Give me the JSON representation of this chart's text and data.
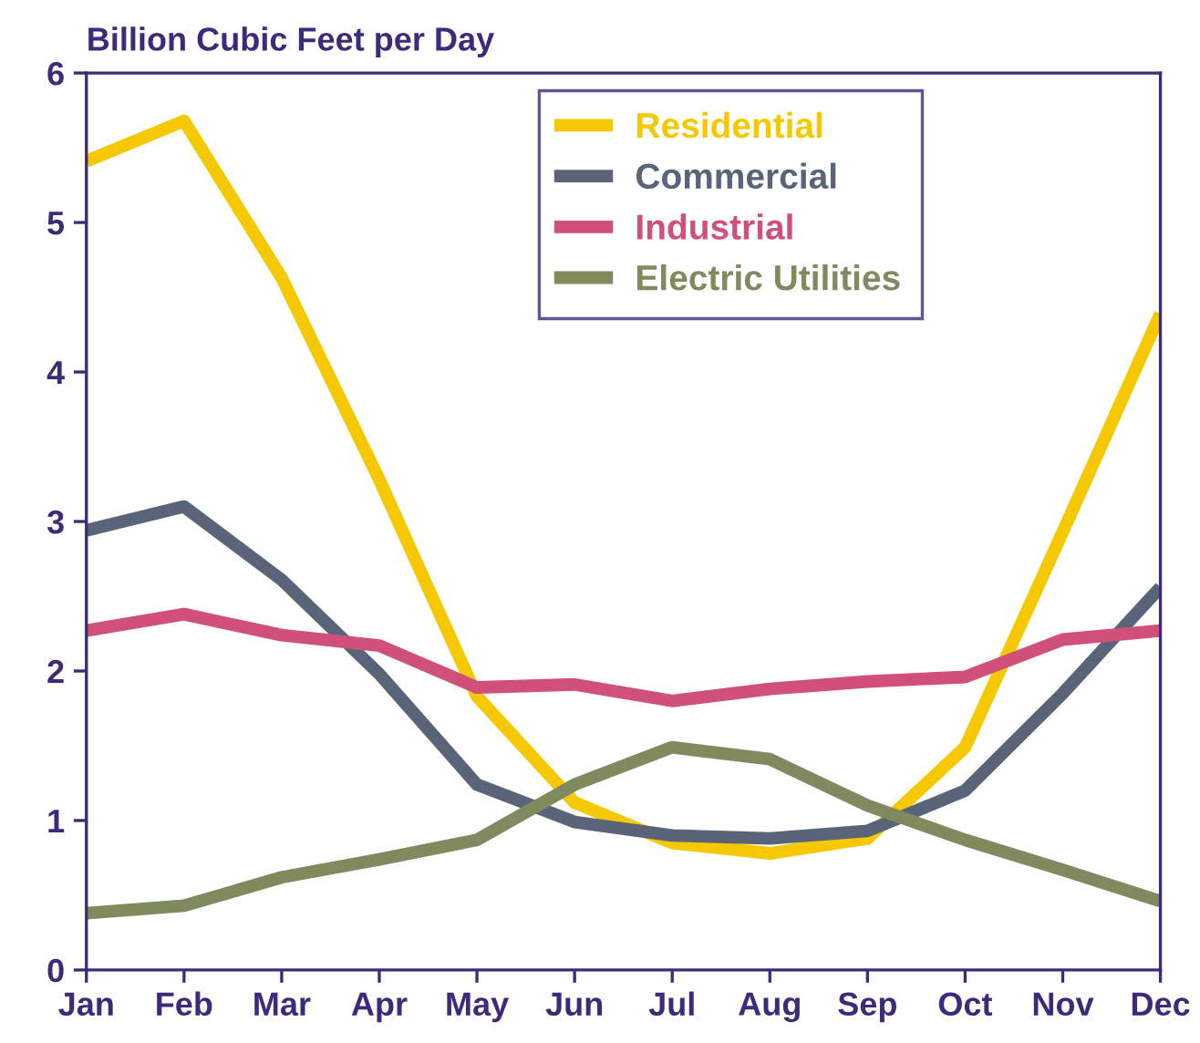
{
  "chart_data": {
    "type": "line",
    "ylabel": "Billion Cubic Feet per Day",
    "categories": [
      "Jan",
      "Feb",
      "Mar",
      "Apr",
      "May",
      "Jun",
      "Jul",
      "Aug",
      "Sep",
      "Oct",
      "Nov",
      "Dec"
    ],
    "series": [
      {
        "name": "Residential",
        "color": "#f5c800",
        "values": [
          5.41,
          5.68,
          4.63,
          3.28,
          1.83,
          1.12,
          0.85,
          0.78,
          0.88,
          1.49,
          2.93,
          4.39
        ]
      },
      {
        "name": "Commercial",
        "color": "#5a6478",
        "values": [
          2.94,
          3.1,
          2.61,
          1.98,
          1.24,
          0.99,
          0.9,
          0.88,
          0.93,
          1.2,
          1.85,
          2.56
        ]
      },
      {
        "name": "Industrial",
        "color": "#d0507a",
        "values": [
          2.27,
          2.38,
          2.24,
          2.17,
          1.89,
          1.91,
          1.8,
          1.88,
          1.93,
          1.96,
          2.21,
          2.27
        ]
      },
      {
        "name": "Electric Utilities",
        "color": "#7f8a5e",
        "values": [
          0.38,
          0.43,
          0.62,
          0.74,
          0.87,
          1.24,
          1.49,
          1.41,
          1.1,
          0.87,
          0.67,
          0.46
        ]
      }
    ],
    "ylim": [
      0,
      6
    ],
    "yticks": [
      0,
      1,
      2,
      3,
      4,
      5,
      6
    ],
    "grid": false,
    "legend": "top",
    "marker": "none",
    "line_style": "solid"
  }
}
